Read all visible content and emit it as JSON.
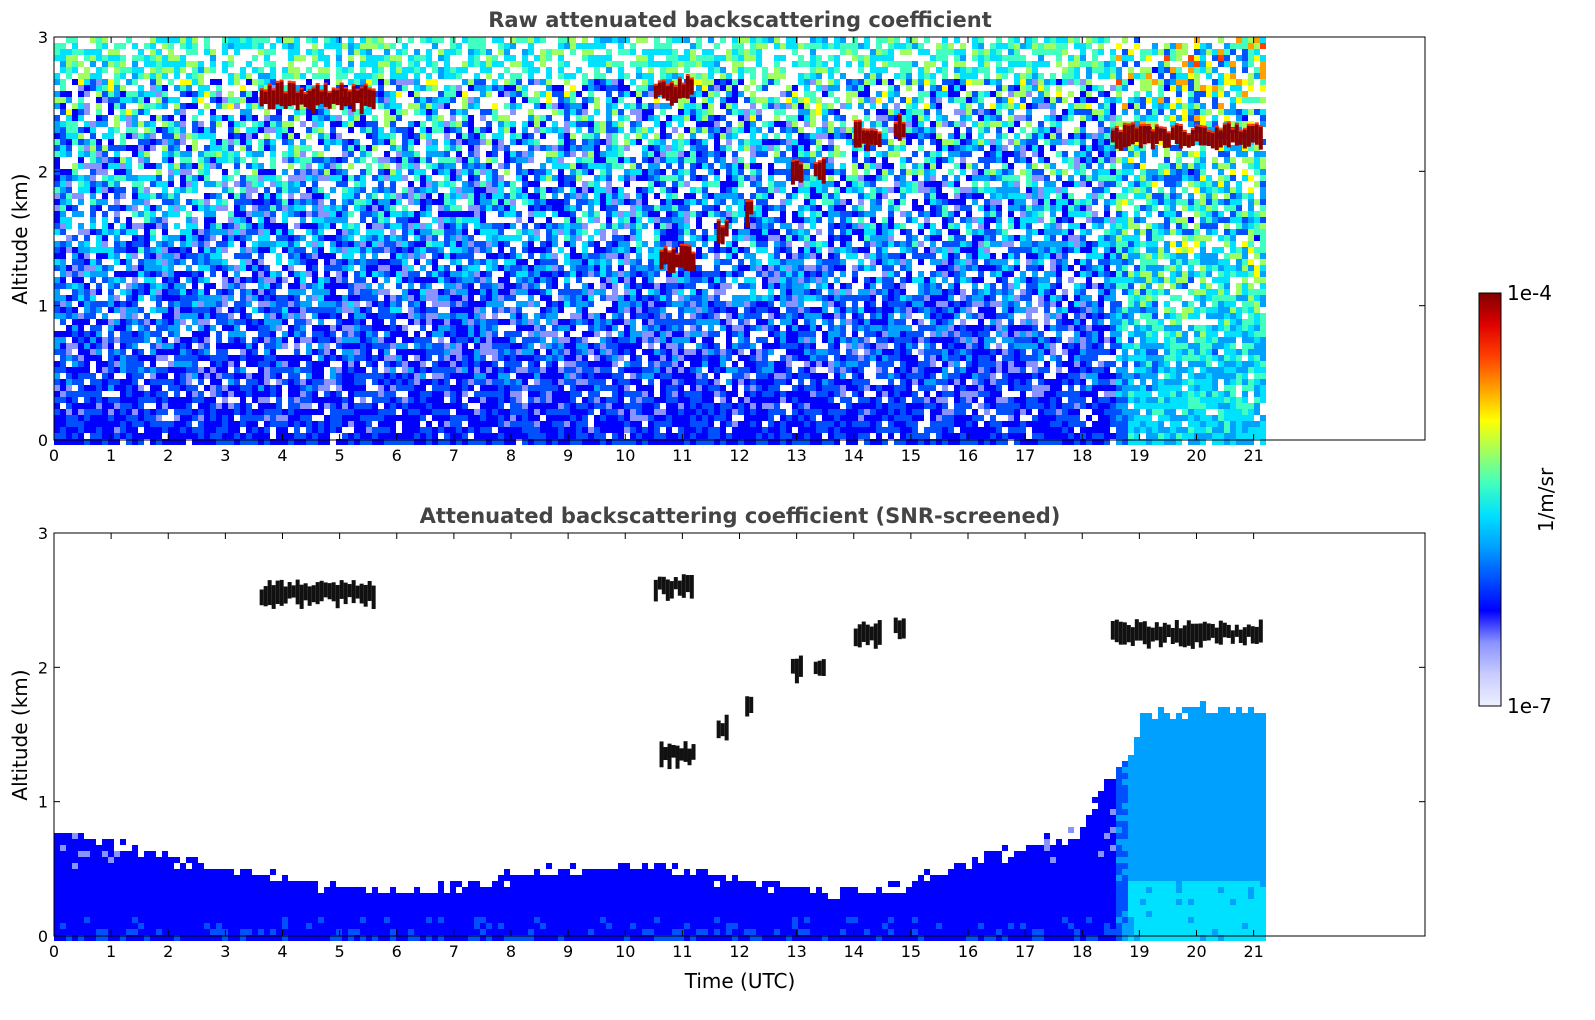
{
  "chart_data": [
    {
      "type": "heatmap",
      "title": "Raw attenuated backscattering coefficient",
      "xlabel": "",
      "ylabel": "Altitude (km)",
      "xlim": [
        0,
        24
      ],
      "ylim": [
        0,
        3
      ],
      "x_ticks": [
        "0",
        "1",
        "2",
        "3",
        "4",
        "5",
        "6",
        "7",
        "8",
        "9",
        "10",
        "11",
        "12",
        "13",
        "14",
        "15",
        "16",
        "17",
        "18",
        "19",
        "20",
        "21"
      ],
      "y_ticks": [
        "0",
        "1",
        "2",
        "3"
      ],
      "data_end_time": 21.15,
      "screened": false,
      "features": {
        "clouds": [
          {
            "t0": 3.6,
            "t1": 5.6,
            "alt": 2.55
          },
          {
            "t0": 10.5,
            "t1": 11.2,
            "alt": 2.6
          },
          {
            "t0": 10.6,
            "t1": 11.2,
            "alt": 1.35
          },
          {
            "t0": 11.6,
            "t1": 11.75,
            "alt": 1.55
          },
          {
            "t0": 12.1,
            "t1": 12.2,
            "alt": 1.7
          },
          {
            "t0": 12.9,
            "t1": 13.1,
            "alt": 2.0
          },
          {
            "t0": 13.3,
            "t1": 13.5,
            "alt": 2.0
          },
          {
            "t0": 14.0,
            "t1": 14.45,
            "alt": 2.25
          },
          {
            "t0": 14.7,
            "t1": 14.85,
            "alt": 2.3
          },
          {
            "t0": 18.5,
            "t1": 21.15,
            "alt": 2.25
          }
        ]
      }
    },
    {
      "type": "heatmap",
      "title": "Attenuated backscattering coefficient (SNR-screened)",
      "xlabel": "Time (UTC)",
      "ylabel": "Altitude (km)",
      "xlim": [
        0,
        24
      ],
      "ylim": [
        0,
        3
      ],
      "x_ticks": [
        "0",
        "1",
        "2",
        "3",
        "4",
        "5",
        "6",
        "7",
        "8",
        "9",
        "10",
        "11",
        "12",
        "13",
        "14",
        "15",
        "16",
        "17",
        "18",
        "19",
        "20",
        "21"
      ],
      "y_ticks": [
        "0",
        "1",
        "2",
        "3"
      ],
      "data_end_time": 21.15,
      "screened": true
    }
  ],
  "colorbar": {
    "label": "1/m/sr",
    "max_label": "1e-4",
    "min_label": "1e-7",
    "colors": [
      "#eef0ff",
      "#c8ccff",
      "#8a92ff",
      "#0000ff",
      "#0050ff",
      "#00a0ff",
      "#00e0ff",
      "#40ffc0",
      "#a0ff60",
      "#ffff00",
      "#ffa000",
      "#ff4000",
      "#e00000",
      "#800000"
    ]
  }
}
